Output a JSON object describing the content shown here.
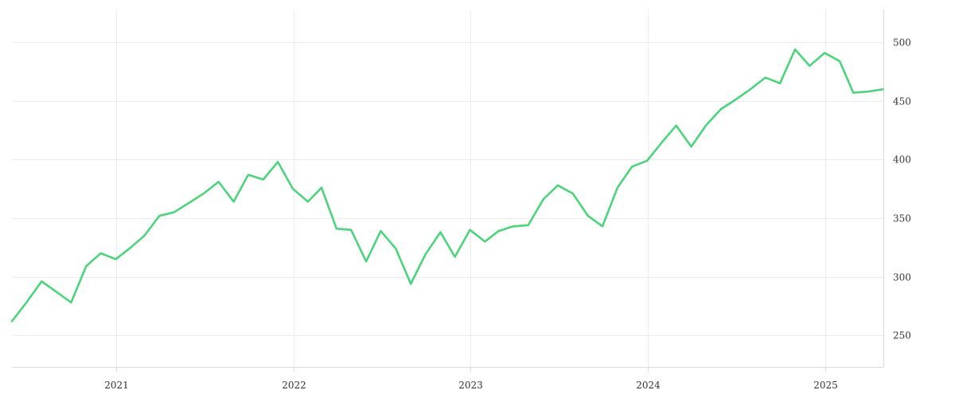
{
  "chart_data": {
    "type": "line",
    "title": "",
    "xlabel": "",
    "ylabel": "",
    "x_ticks": [
      "2021",
      "2022",
      "2023",
      "2024",
      "2025"
    ],
    "y_ticks": [
      250,
      300,
      350,
      400,
      450,
      500
    ],
    "xlim": [
      "2020-05-31",
      "2025-05-01"
    ],
    "ylim": [
      223,
      528
    ],
    "grid": true,
    "y_axis_side": "right",
    "line_color": "#4cd47b",
    "series": [
      {
        "x": [
          "2020-05-31",
          "2020-06-30",
          "2020-07-31",
          "2020-08-31",
          "2020-09-30",
          "2020-10-31",
          "2020-11-30",
          "2020-12-31",
          "2021-01-31",
          "2021-02-28",
          "2021-03-31",
          "2021-04-30",
          "2021-05-31",
          "2021-06-30",
          "2021-07-31",
          "2021-08-31",
          "2021-09-30",
          "2021-10-31",
          "2021-11-30",
          "2021-12-31",
          "2022-01-31",
          "2022-02-28",
          "2022-03-31",
          "2022-04-30",
          "2022-05-31",
          "2022-06-30",
          "2022-07-31",
          "2022-08-31",
          "2022-09-30",
          "2022-10-31",
          "2022-11-30",
          "2022-12-31",
          "2023-01-31",
          "2023-02-28",
          "2023-03-31",
          "2023-04-30",
          "2023-05-31",
          "2023-06-30",
          "2023-07-31",
          "2023-08-31",
          "2023-09-30",
          "2023-10-31",
          "2023-11-30",
          "2023-12-31",
          "2024-01-31",
          "2024-02-29",
          "2024-03-31",
          "2024-04-30",
          "2024-05-31",
          "2024-06-30",
          "2024-07-31",
          "2024-08-31",
          "2024-09-30",
          "2024-10-31",
          "2024-11-30",
          "2024-12-31",
          "2025-01-31",
          "2025-02-28",
          "2025-03-31",
          "2025-04-30"
        ],
        "values": [
          262,
          278,
          296,
          287,
          278,
          309,
          320,
          315,
          325,
          335,
          352,
          355,
          363,
          371,
          381,
          364,
          387,
          383,
          398,
          375,
          364,
          376,
          341,
          340,
          313,
          339,
          324,
          294,
          319,
          338,
          317,
          340,
          330,
          339,
          343,
          344,
          366,
          378,
          371,
          352,
          343,
          376,
          394,
          399,
          415,
          429,
          411,
          429,
          443,
          451,
          460,
          470,
          465,
          494,
          480,
          491,
          484,
          457,
          458,
          460
        ]
      }
    ]
  }
}
